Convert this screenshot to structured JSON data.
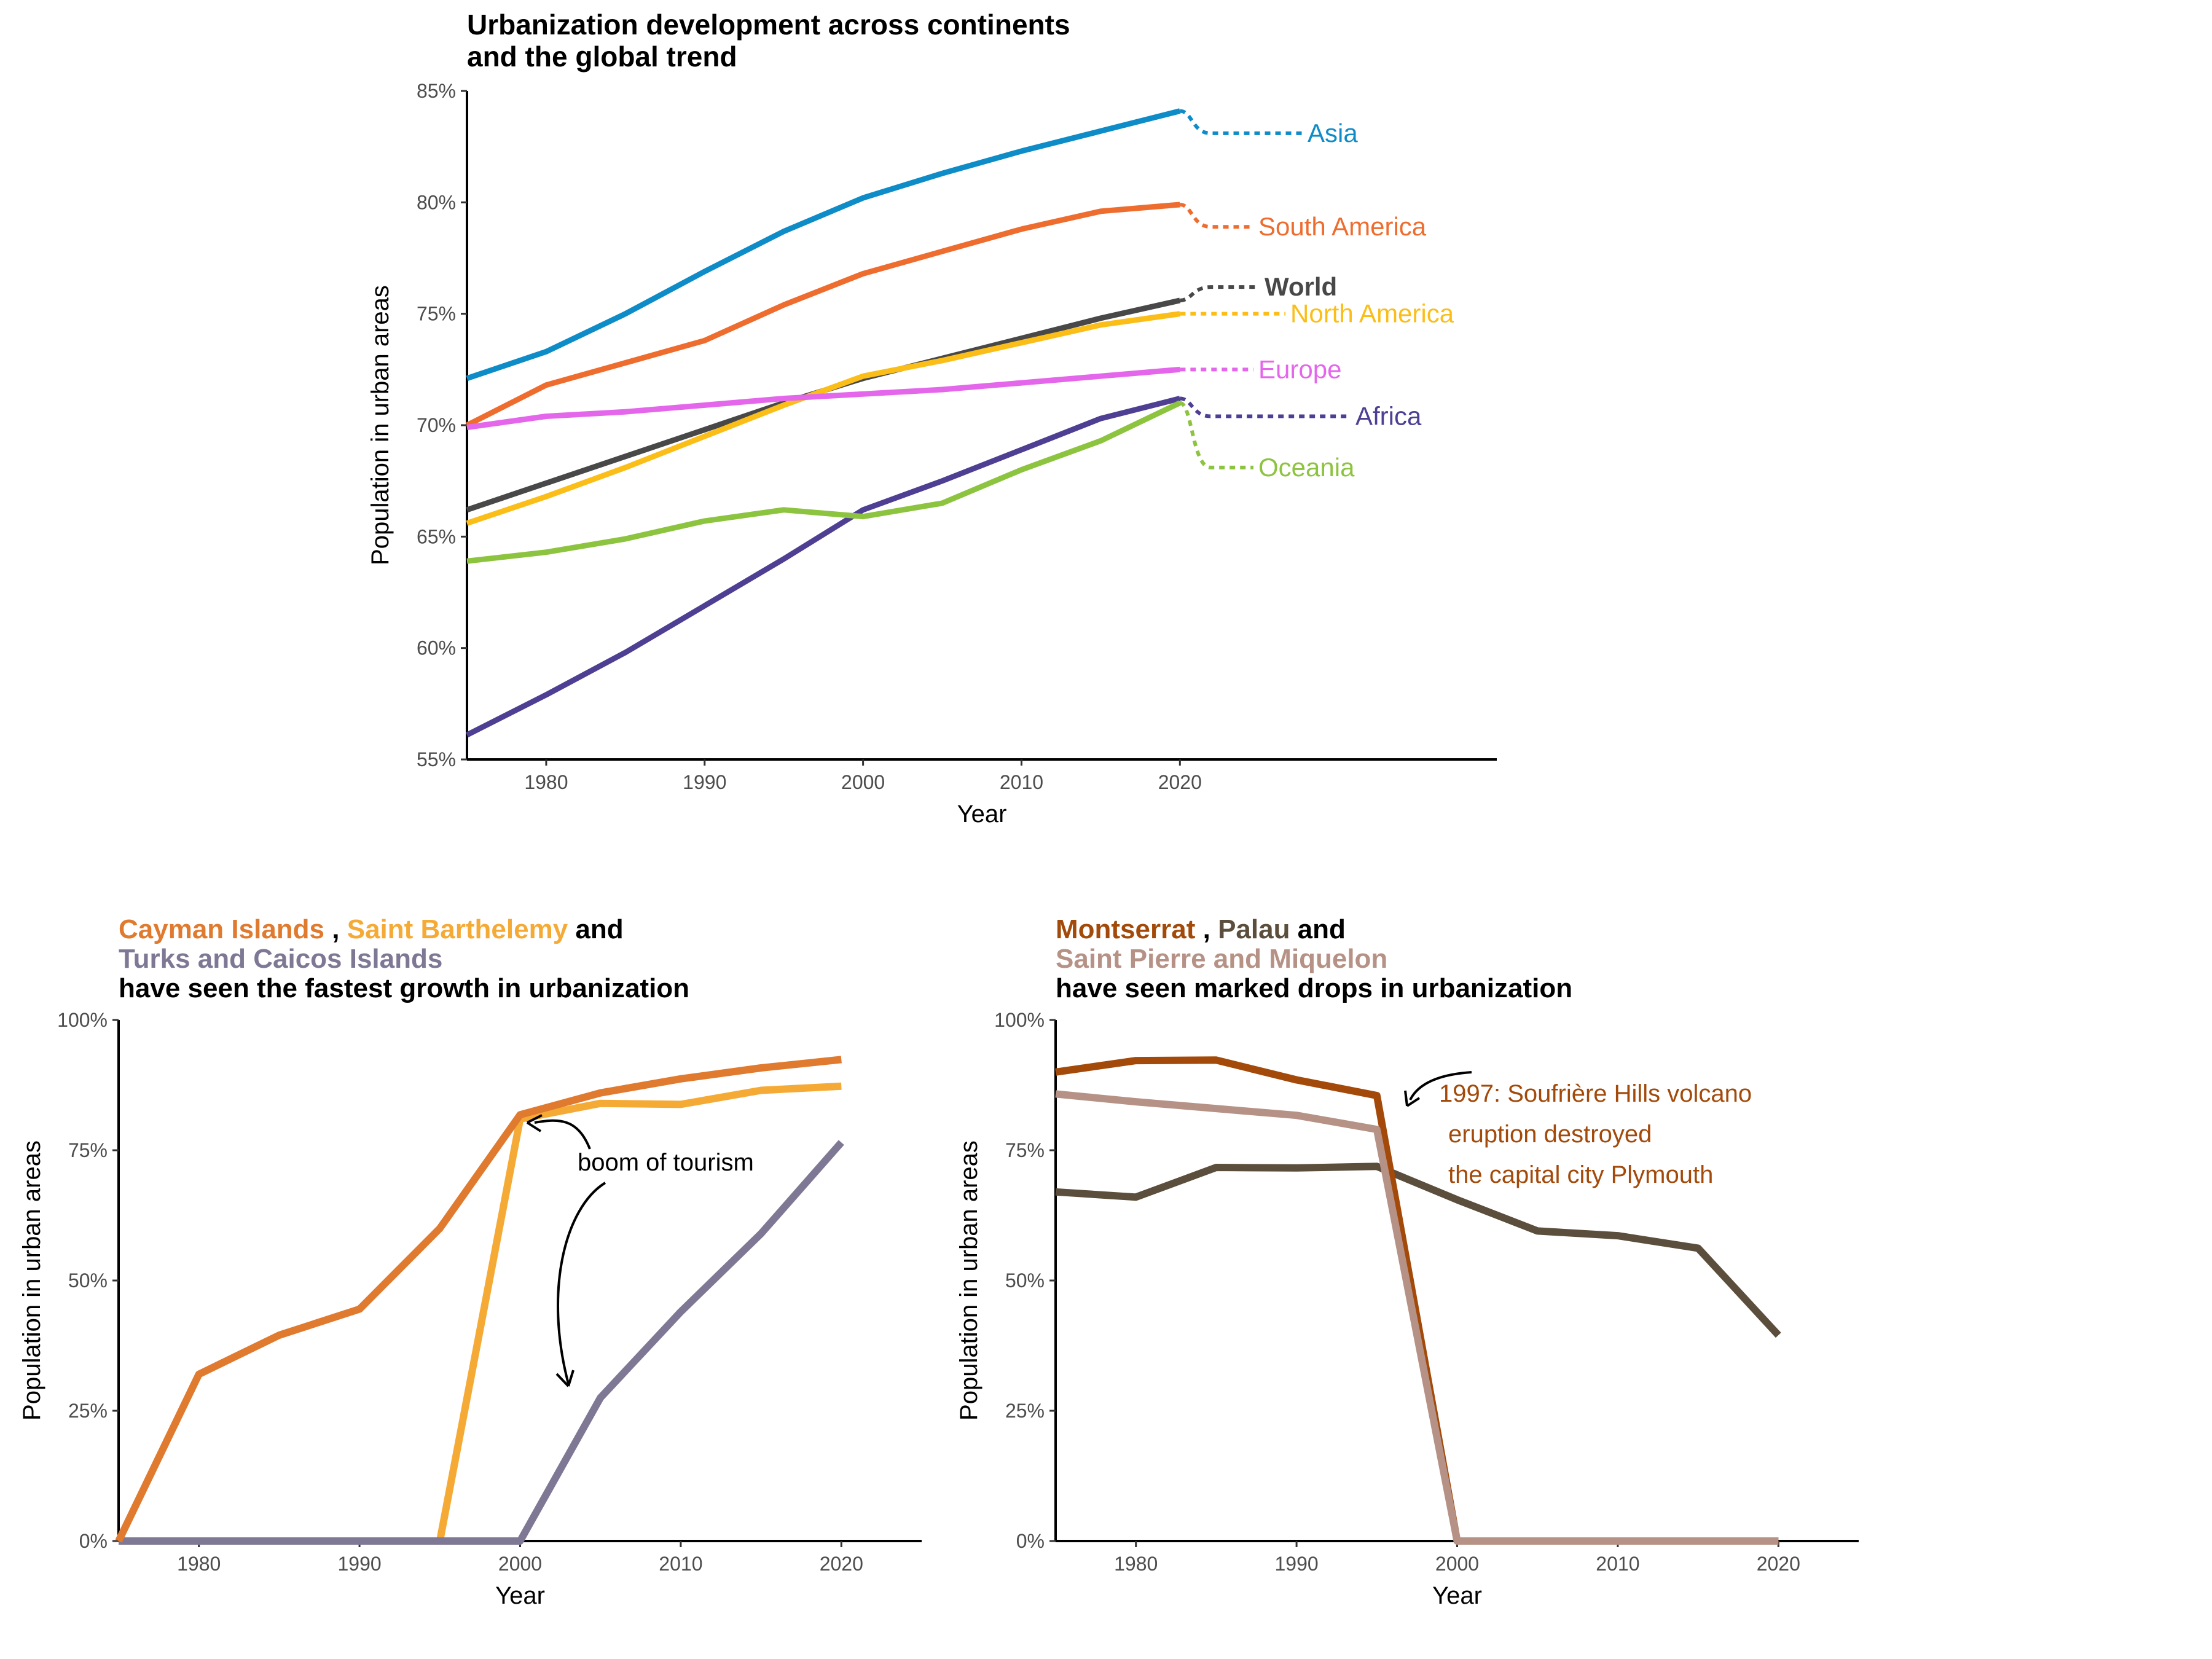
{
  "chart_data": [
    {
      "type": "line",
      "title": [
        "Urbanization development across continents",
        "and the global trend"
      ],
      "xlabel": "Year",
      "ylabel": "Population in urban areas",
      "x": [
        1975,
        1980,
        1985,
        1990,
        1995,
        2000,
        2005,
        2010,
        2015,
        2020
      ],
      "xlim": [
        1975,
        2040
      ],
      "ylim": [
        55,
        85
      ],
      "xticks": [
        "1980",
        "1990",
        "2000",
        "2010",
        "2020"
      ],
      "yticks": [
        "55%",
        "60%",
        "65%",
        "70%",
        "75%",
        "80%",
        "85%"
      ],
      "grid": false,
      "legend": "direct labels at right end of lines",
      "series": [
        {
          "name": "Asia",
          "color": "#0E8CC8",
          "values": [
            72.1,
            73.3,
            75.0,
            76.9,
            78.7,
            80.2,
            81.3,
            82.3,
            83.2,
            84.1
          ],
          "label_y": 83.1,
          "label_bold": false
        },
        {
          "name": "South America",
          "color": "#EE6C2E",
          "values": [
            70.0,
            71.8,
            72.8,
            73.8,
            75.4,
            76.8,
            77.8,
            78.8,
            79.6,
            79.9
          ],
          "label_y": 78.9,
          "label_bold": false
        },
        {
          "name": "World",
          "color": "#484848",
          "values": [
            66.2,
            67.4,
            68.6,
            69.8,
            71.0,
            72.1,
            73.0,
            73.9,
            74.8,
            75.6
          ],
          "label_y": 76.2,
          "label_bold": true
        },
        {
          "name": "North America",
          "color": "#FBBE18",
          "values": [
            65.6,
            66.8,
            68.1,
            69.5,
            70.9,
            72.2,
            72.9,
            73.7,
            74.5,
            75.0
          ],
          "label_y": 75.0,
          "label_bold": false
        },
        {
          "name": "Europe",
          "color": "#E467EB",
          "values": [
            69.9,
            70.4,
            70.6,
            70.9,
            71.2,
            71.4,
            71.6,
            71.9,
            72.2,
            72.5
          ],
          "label_y": 72.5,
          "label_bold": false
        },
        {
          "name": "Africa",
          "color": "#4E3F93",
          "values": [
            56.1,
            57.9,
            59.8,
            61.9,
            64.0,
            66.2,
            67.5,
            68.9,
            70.3,
            71.2
          ],
          "label_y": 70.4,
          "label_bold": false
        },
        {
          "name": "Oceania",
          "color": "#8DC43F",
          "values": [
            63.9,
            64.3,
            64.9,
            65.7,
            66.2,
            65.9,
            66.5,
            68.0,
            69.3,
            71.0
          ],
          "label_y": 68.1,
          "label_bold": false
        }
      ]
    },
    {
      "type": "line",
      "title_runs": [
        [
          {
            "text": "Cayman Islands",
            "color": "#E07A2F"
          },
          {
            "text": " ,  ",
            "color": "#000000"
          },
          {
            "text": "Saint Barthelemy",
            "color": "#F6AA36"
          },
          {
            "text": "  and",
            "color": "#000000"
          }
        ],
        [
          {
            "text": "Turks and Caicos Islands",
            "color": "#7E7895"
          }
        ],
        [
          {
            "text": "have seen the fastest growth in urbanization",
            "color": "#000000"
          }
        ]
      ],
      "xlabel": "Year",
      "ylabel": "Population in urban areas",
      "x": [
        1975,
        1980,
        1985,
        1990,
        1995,
        2000,
        2005,
        2010,
        2015,
        2020
      ],
      "xlim": [
        1975,
        2025
      ],
      "ylim": [
        0,
        100
      ],
      "xticks": [
        "1980",
        "1990",
        "2000",
        "2010",
        "2020"
      ],
      "yticks": [
        "0%",
        "25%",
        "50%",
        "75%",
        "100%"
      ],
      "grid": false,
      "series": [
        {
          "name": "Saint Barthelemy",
          "color": "#F6AA36",
          "values": [
            0,
            0,
            0,
            0,
            0,
            81.0,
            84.0,
            83.8,
            86.5,
            87.3
          ]
        },
        {
          "name": "Turks and Caicos Islands",
          "color": "#7E7895",
          "values": [
            0,
            0,
            0,
            0,
            0,
            0,
            27.5,
            44.0,
            59.0,
            76.5
          ]
        },
        {
          "name": "Cayman Islands",
          "color": "#E07A2F",
          "values": [
            0,
            32.0,
            39.5,
            44.5,
            60.0,
            81.8,
            86.0,
            88.7,
            90.8,
            92.4
          ]
        }
      ],
      "annotation": {
        "text": "boom of tourism",
        "color": "#000000"
      }
    },
    {
      "type": "line",
      "title_runs": [
        [
          {
            "text": "Montserrat",
            "color": "#A34A0A"
          },
          {
            "text": " ,  ",
            "color": "#000000"
          },
          {
            "text": "Palau",
            "color": "#5B4E3C"
          },
          {
            "text": "  and",
            "color": "#000000"
          }
        ],
        [
          {
            "text": "Saint Pierre and Miquelon",
            "color": "#B69286"
          }
        ],
        [
          {
            "text": "have seen marked drops in urbanization",
            "color": "#000000"
          }
        ]
      ],
      "xlabel": "Year",
      "ylabel": "Population in urban areas",
      "x": [
        1975,
        1980,
        1985,
        1990,
        1995,
        2000,
        2005,
        2010,
        2015,
        2020
      ],
      "xlim": [
        1975,
        2025
      ],
      "ylim": [
        0,
        100
      ],
      "xticks": [
        "1980",
        "1990",
        "2000",
        "2010",
        "2020"
      ],
      "yticks": [
        "0%",
        "25%",
        "50%",
        "75%",
        "100%"
      ],
      "grid": false,
      "series": [
        {
          "name": "Palau",
          "color": "#5B4E3C",
          "values": [
            67.0,
            66.0,
            71.7,
            71.6,
            71.9,
            65.5,
            59.5,
            58.6,
            56.2,
            39.5
          ]
        },
        {
          "name": "Montserrat",
          "color": "#A34A0A",
          "values": [
            90.0,
            92.2,
            92.3,
            88.5,
            85.5,
            0,
            0,
            0,
            0,
            0
          ]
        },
        {
          "name": "Saint Pierre and Miquelon",
          "color": "#B69286",
          "values": [
            85.8,
            84.3,
            83.0,
            81.7,
            79.0,
            0,
            0,
            0,
            0,
            0
          ]
        }
      ],
      "annotation": {
        "lines": [
          "1997: Soufrière Hills volcano",
          "eruption destroyed",
          "the capital city Plymouth"
        ],
        "color": "#A34A0A"
      }
    }
  ]
}
